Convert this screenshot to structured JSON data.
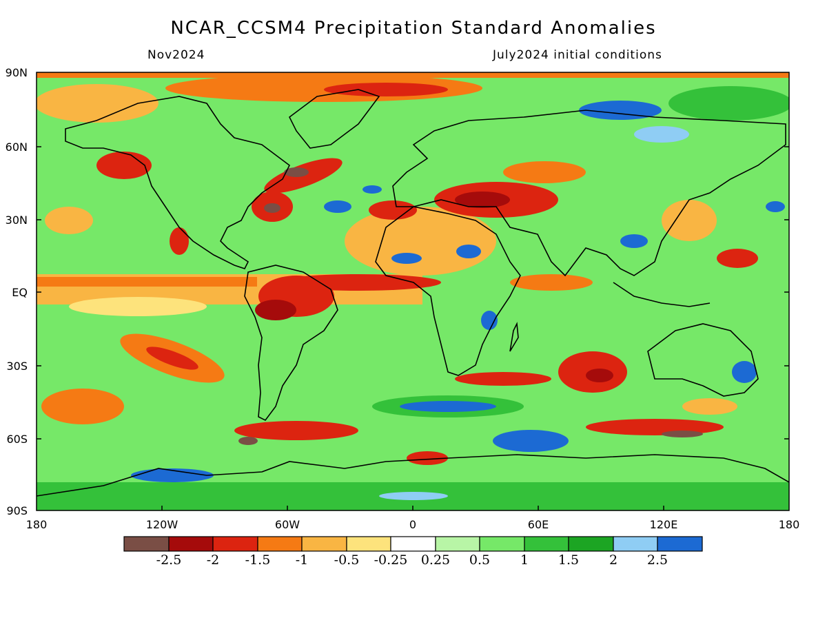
{
  "title": "NCAR_CCSM4 Precipitation Standard Anomalies",
  "forecast_month": "Nov2024",
  "initial_conditions": "July2024 initial conditions",
  "map": {
    "projection": "lat-lon",
    "lat_ticks": [
      "90N",
      "60N",
      "30N",
      "EQ",
      "30S",
      "60S",
      "90S"
    ],
    "lon_ticks": [
      "180",
      "120W",
      "60W",
      "0",
      "60E",
      "120E",
      "180"
    ]
  },
  "colorbar": {
    "labels": [
      "-2.5",
      "-2",
      "-1.5",
      "-1",
      "-0.5",
      "-0.25",
      "0.25",
      "0.5",
      "1",
      "1.5",
      "2",
      "2.5"
    ],
    "colors": [
      "#7a4e45",
      "#a50b0b",
      "#dc2410",
      "#f57a14",
      "#f9b543",
      "#fde37c",
      "#ffffff",
      "#b8f5a6",
      "#76e868",
      "#34c13a",
      "#1ca523",
      "#8fcdf4",
      "#1c6ad3"
    ]
  }
}
